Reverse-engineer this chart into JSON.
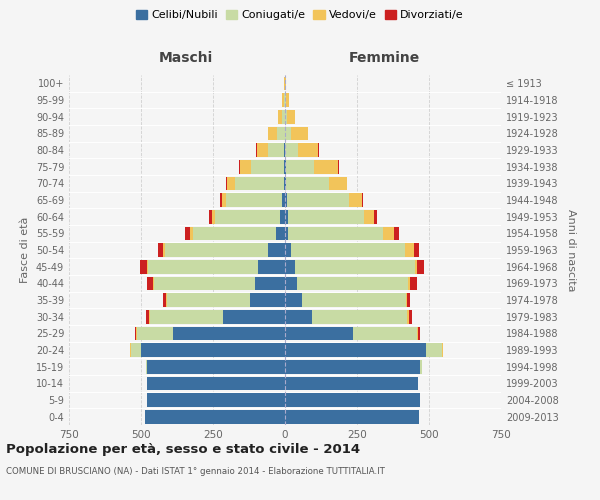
{
  "age_groups": [
    "0-4",
    "5-9",
    "10-14",
    "15-19",
    "20-24",
    "25-29",
    "30-34",
    "35-39",
    "40-44",
    "45-49",
    "50-54",
    "55-59",
    "60-64",
    "65-69",
    "70-74",
    "75-79",
    "80-84",
    "85-89",
    "90-94",
    "95-99",
    "100+"
  ],
  "birth_years": [
    "2009-2013",
    "2004-2008",
    "1999-2003",
    "1994-1998",
    "1989-1993",
    "1984-1988",
    "1979-1983",
    "1974-1978",
    "1969-1973",
    "1964-1968",
    "1959-1963",
    "1954-1958",
    "1949-1953",
    "1944-1948",
    "1939-1943",
    "1934-1938",
    "1929-1933",
    "1924-1928",
    "1919-1923",
    "1914-1918",
    "≤ 1913"
  ],
  "male": {
    "celibi": [
      485,
      480,
      478,
      478,
      500,
      390,
      215,
      120,
      105,
      95,
      60,
      30,
      18,
      10,
      5,
      3,
      2,
      1,
      0,
      0,
      0
    ],
    "coniugati": [
      0,
      0,
      0,
      5,
      35,
      125,
      255,
      290,
      350,
      380,
      355,
      290,
      225,
      195,
      170,
      115,
      58,
      28,
      10,
      4,
      1
    ],
    "vedovi": [
      0,
      0,
      0,
      0,
      2,
      2,
      3,
      3,
      5,
      5,
      10,
      10,
      12,
      15,
      25,
      38,
      38,
      30,
      14,
      6,
      2
    ],
    "divorziati": [
      0,
      0,
      0,
      0,
      2,
      5,
      10,
      12,
      20,
      22,
      15,
      18,
      10,
      5,
      5,
      3,
      1,
      0,
      0,
      0,
      0
    ]
  },
  "female": {
    "nubili": [
      465,
      468,
      462,
      470,
      490,
      235,
      95,
      60,
      42,
      35,
      22,
      12,
      10,
      7,
      4,
      2,
      1,
      1,
      0,
      0,
      0
    ],
    "coniugate": [
      0,
      0,
      0,
      5,
      55,
      225,
      330,
      360,
      385,
      415,
      395,
      330,
      265,
      215,
      150,
      100,
      45,
      20,
      6,
      2,
      0
    ],
    "vedove": [
      0,
      0,
      0,
      0,
      2,
      3,
      5,
      5,
      8,
      10,
      30,
      35,
      35,
      45,
      60,
      82,
      70,
      58,
      28,
      12,
      4
    ],
    "divorziate": [
      0,
      0,
      0,
      0,
      2,
      5,
      10,
      10,
      22,
      22,
      20,
      18,
      10,
      5,
      3,
      2,
      1,
      0,
      0,
      0,
      0
    ]
  },
  "colors": {
    "celibi_nubili": "#3b6fa0",
    "coniugati": "#c8dba4",
    "vedovi": "#f2c45a",
    "divorziati": "#cc2020"
  },
  "title": "Popolazione per età, sesso e stato civile - 2014",
  "subtitle": "COMUNE DI BRUSCIANO (NA) - Dati ISTAT 1° gennaio 2014 - Elaborazione TUTTITALIA.IT",
  "xlabel_left": "Maschi",
  "xlabel_right": "Femmine",
  "ylabel_left": "Fasce di età",
  "ylabel_right": "Anni di nascita",
  "xlim": 750,
  "background_color": "#f5f5f5",
  "grid_color": "#d0d0d0",
  "legend_labels": [
    "Celibi/Nubili",
    "Coniugati/e",
    "Vedovi/e",
    "Divorziati/e"
  ]
}
